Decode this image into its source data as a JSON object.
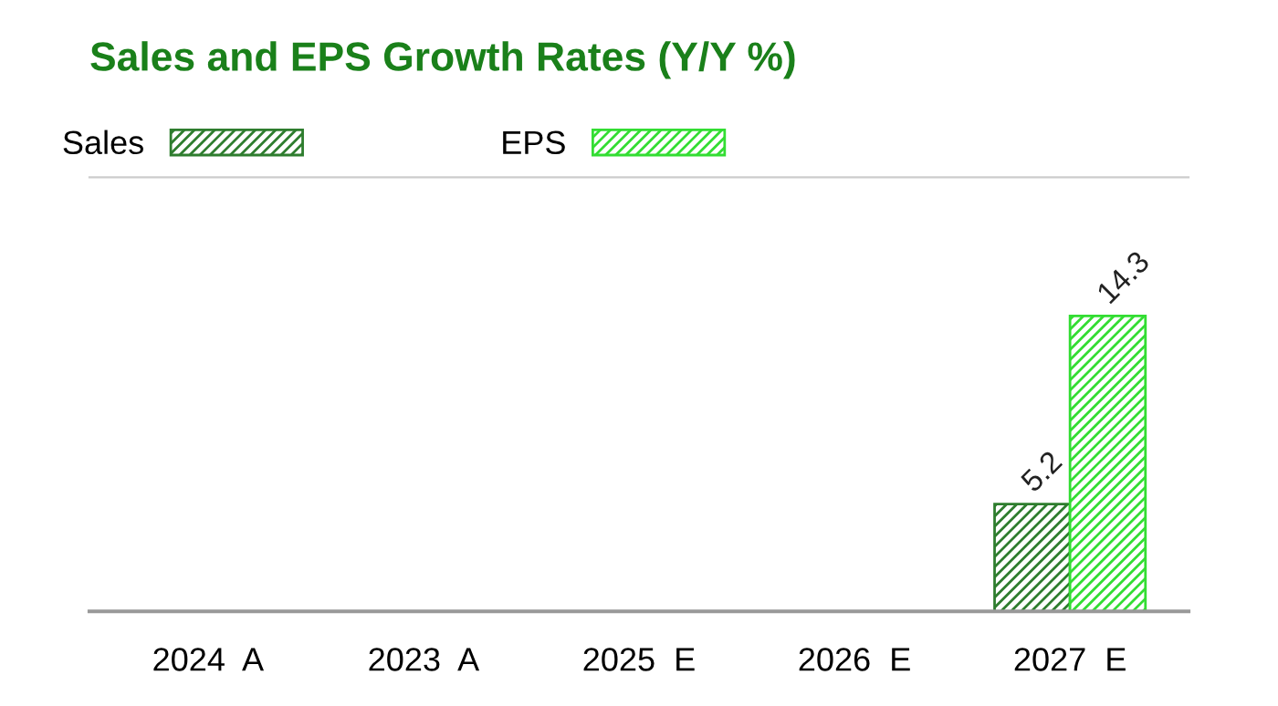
{
  "chart_data": {
    "type": "bar",
    "title": "Sales and EPS Growth Rates (Y/Y %)",
    "categories": [
      "2024  A",
      "2023  A",
      "2025  E",
      "2026  E",
      "2027  E"
    ],
    "series": [
      {
        "name": "Sales",
        "color": "#2e7d2e",
        "values": [
          null,
          null,
          null,
          null,
          5.2
        ]
      },
      {
        "name": "EPS",
        "color": "#33dd33",
        "values": [
          null,
          null,
          null,
          null,
          14.3
        ]
      }
    ],
    "data_labels": true,
    "legend": "top",
    "grid": false
  }
}
